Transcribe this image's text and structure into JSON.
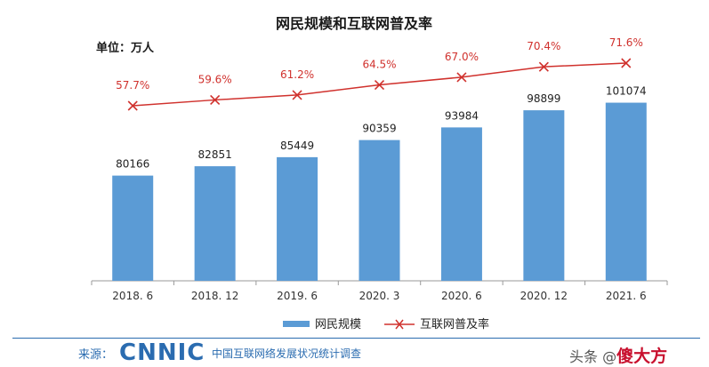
{
  "chart_data": {
    "type": "bar",
    "title": "网民规模和互联网普及率",
    "unit_label": "单位：万人",
    "categories": [
      "2018. 6",
      "2018. 12",
      "2019. 6",
      "2020. 3",
      "2020. 6",
      "2020. 12",
      "2021. 6"
    ],
    "series": [
      {
        "name": "网民规模",
        "type": "bar",
        "color": "#5b9bd5",
        "values": [
          80166,
          82851,
          85449,
          90359,
          93984,
          98899,
          101074
        ]
      },
      {
        "name": "互联网普及率",
        "type": "line",
        "color": "#d0312d",
        "marker": "x",
        "values": [
          57.7,
          59.6,
          61.2,
          64.5,
          67.0,
          70.4,
          71.6
        ],
        "labels": [
          "57.7%",
          "59.6%",
          "61.2%",
          "64.5%",
          "67.0%",
          "70.4%",
          "71.6%"
        ]
      }
    ],
    "legend": {
      "placement": "bottom-center"
    },
    "grid": false
  },
  "footer": {
    "source_label": "来源：",
    "logo": "CNNIC",
    "org": "中国互联网络发展状况统计调查",
    "watermark_prefix": "头条 @",
    "watermark_brand": "傻大方"
  },
  "colors": {
    "bar": "#5b9bd5",
    "line": "#d0312d",
    "accent": "#2b6cb0"
  }
}
